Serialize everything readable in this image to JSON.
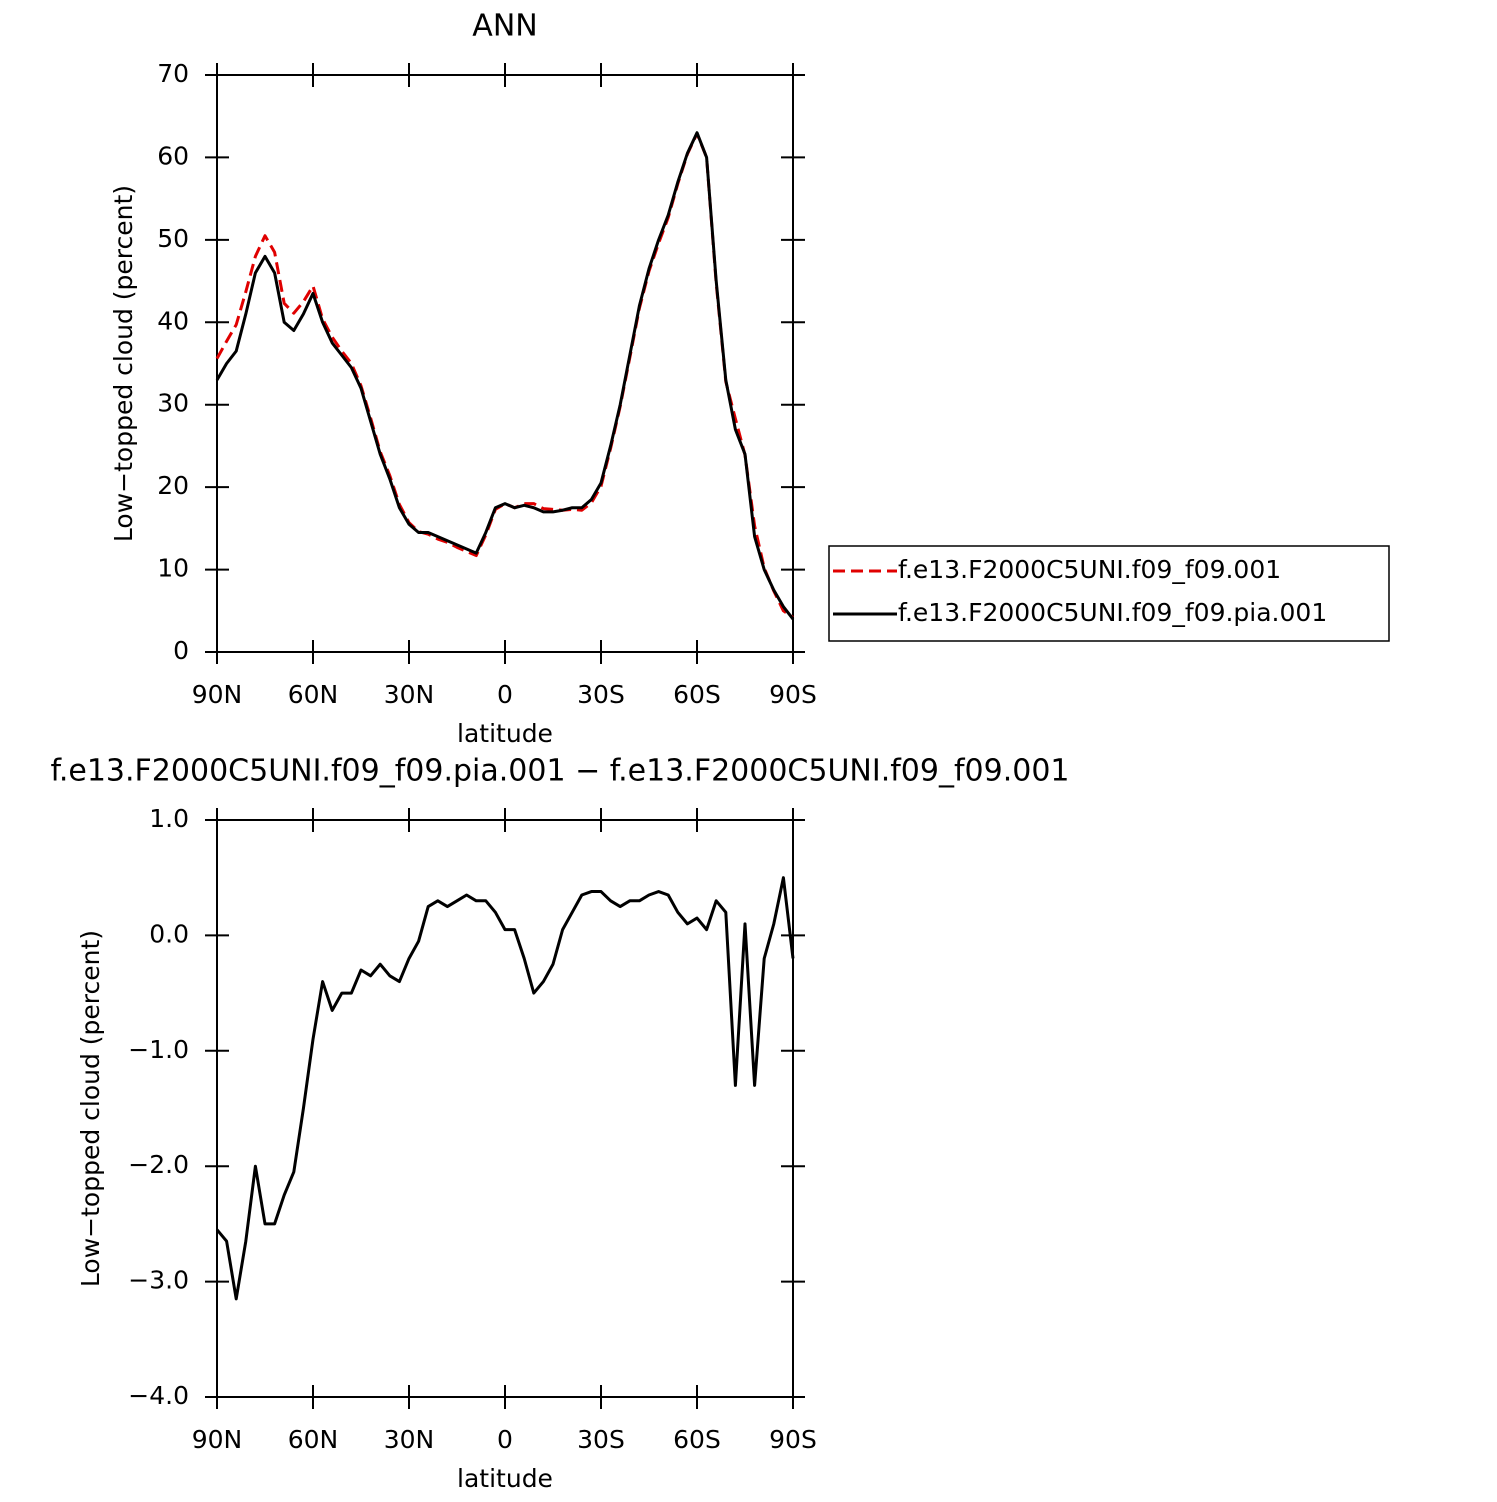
{
  "chart_data": [
    {
      "type": "line",
      "title": "ANN",
      "ylabel": "Low−topped cloud (percent)",
      "xlabel": "latitude",
      "xlim": [
        90,
        -90
      ],
      "ylim": [
        0,
        70
      ],
      "xticks": [
        {
          "value": 90,
          "label": "90N"
        },
        {
          "value": 60,
          "label": "60N"
        },
        {
          "value": 30,
          "label": "30N"
        },
        0,
        {
          "value": -30,
          "label": "30S"
        },
        {
          "value": -60,
          "label": "60S"
        },
        {
          "value": -90,
          "label": "90S"
        }
      ],
      "yticks": [
        0,
        10,
        20,
        30,
        40,
        50,
        60,
        70
      ],
      "legend": "right",
      "x": [
        90,
        87,
        84,
        81,
        78,
        75,
        72,
        69,
        66,
        63,
        60,
        57,
        54,
        51,
        48,
        45,
        42,
        39,
        36,
        33,
        30,
        27,
        24,
        21,
        18,
        15,
        12,
        9,
        6,
        3,
        0,
        -3,
        -6,
        -9,
        -12,
        -15,
        -18,
        -21,
        -24,
        -27,
        -30,
        -33,
        -36,
        -39,
        -42,
        -45,
        -48,
        -51,
        -54,
        -57,
        -60,
        -63,
        -66,
        -69,
        -72,
        -75,
        -78,
        -81,
        -84,
        -87,
        -90
      ],
      "series": [
        {
          "name": "f.e13.F2000C5UNI.f09_f09.001",
          "color": "#e00000",
          "dash": true,
          "values": [
            35.6,
            37.7,
            39.7,
            43.7,
            48,
            50.5,
            48.5,
            42.3,
            41.1,
            42.5,
            44.4,
            40.4,
            38.2,
            36.5,
            35,
            32.3,
            28.4,
            24.3,
            21.4,
            17.9,
            15.7,
            14.6,
            14.3,
            13.7,
            13.3,
            12.7,
            12.2,
            11.7,
            14.2,
            17.3,
            18,
            17.5,
            18,
            18,
            17.4,
            17.3,
            17.2,
            17.3,
            17.2,
            18.1,
            20.1,
            24.7,
            29.8,
            35.7,
            41.7,
            46.2,
            49.6,
            52.7,
            56.8,
            60.4,
            62.9,
            60,
            44.7,
            32.8,
            28.3,
            23.9,
            15.3,
            10.2,
            7.4,
            5,
            4.2
          ]
        },
        {
          "name": "f.e13.F2000C5UNI.f09_f09.pia.001",
          "color": "#000000",
          "dash": false,
          "values": [
            33,
            35,
            36.5,
            41,
            46,
            48,
            46,
            40,
            39,
            41,
            43.5,
            40,
            37.5,
            36,
            34.5,
            32,
            28,
            24,
            21,
            17.5,
            15.5,
            14.5,
            14.5,
            14,
            13.5,
            13,
            12.5,
            12,
            14.5,
            17.5,
            18,
            17.5,
            17.8,
            17.5,
            17,
            17,
            17.2,
            17.5,
            17.5,
            18.5,
            20.5,
            25,
            30,
            36,
            42,
            46.5,
            50,
            53,
            57,
            60.5,
            63,
            60,
            45,
            33,
            27,
            24,
            14,
            10,
            7.5,
            5.5,
            4
          ]
        }
      ]
    },
    {
      "type": "line",
      "title": "f.e13.F2000C5UNI.f09_f09.pia.001 − f.e13.F2000C5UNI.f09_f09.001",
      "ylabel": "Low−topped cloud (percent)",
      "xlabel": "latitude",
      "xlim": [
        90,
        -90
      ],
      "ylim": [
        -4,
        1
      ],
      "xticks": [
        {
          "value": 90,
          "label": "90N"
        },
        {
          "value": 60,
          "label": "60N"
        },
        {
          "value": 30,
          "label": "30N"
        },
        0,
        {
          "value": -30,
          "label": "30S"
        },
        {
          "value": -60,
          "label": "60S"
        },
        {
          "value": -90,
          "label": "90S"
        }
      ],
      "yticks": [
        {
          "value": -4,
          "label": "−4.0"
        },
        {
          "value": -3,
          "label": "−3.0"
        },
        {
          "value": -2,
          "label": "−2.0"
        },
        {
          "value": -1,
          "label": "−1.0"
        },
        {
          "value": 0,
          "label": "0.0"
        },
        {
          "value": 1,
          "label": "1.0"
        }
      ],
      "x": [
        90,
        87,
        84,
        81,
        78,
        75,
        72,
        69,
        66,
        63,
        60,
        57,
        54,
        51,
        48,
        45,
        42,
        39,
        36,
        33,
        30,
        27,
        24,
        21,
        18,
        15,
        12,
        9,
        6,
        3,
        0,
        -3,
        -6,
        -9,
        -12,
        -15,
        -18,
        -21,
        -24,
        -27,
        -30,
        -33,
        -36,
        -39,
        -42,
        -45,
        -48,
        -51,
        -54,
        -57,
        -60,
        -63,
        -66,
        -69,
        -72,
        -75,
        -78,
        -81,
        -84,
        -87,
        -90
      ],
      "color": "#000000",
      "values": [
        -2.55,
        -2.65,
        -3.15,
        -2.65,
        -2,
        -2.5,
        -2.5,
        -2.25,
        -2.05,
        -1.5,
        -0.9,
        -0.4,
        -0.65,
        -0.5,
        -0.5,
        -0.3,
        -0.35,
        -0.25,
        -0.35,
        -0.4,
        -0.2,
        -0.05,
        0.25,
        0.3,
        0.25,
        0.3,
        0.35,
        0.3,
        0.3,
        0.2,
        0.05,
        0.05,
        -0.2,
        -0.5,
        -0.4,
        -0.25,
        0.05,
        0.2,
        0.35,
        0.38,
        0.38,
        0.3,
        0.25,
        0.3,
        0.3,
        0.35,
        0.38,
        0.35,
        0.2,
        0.1,
        0.15,
        0.05,
        0.3,
        0.2,
        -1.3,
        0.1,
        -1.3,
        -0.2,
        0.1,
        0.5,
        -0.2
      ]
    }
  ]
}
